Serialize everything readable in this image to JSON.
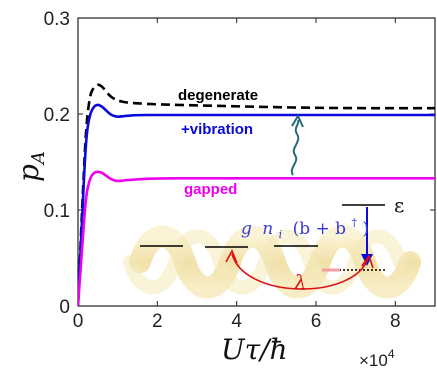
{
  "chart_data": {
    "type": "line",
    "xlabel": "Uτ/ħ",
    "ylabel": "p",
    "ylabel_sub": "A",
    "x_multiplier_base": "×10",
    "x_multiplier_exp": "4",
    "xlim": [
      0,
      9
    ],
    "ylim": [
      0,
      0.3
    ],
    "xticks": [
      0,
      2,
      4,
      6,
      8
    ],
    "yticks": [
      0,
      0.1,
      0.2,
      0.3
    ],
    "xtick_labels": [
      "0",
      "2",
      "4",
      "6",
      "8"
    ],
    "ytick_labels": [
      "0",
      "0.1",
      "0.2",
      "0.3"
    ],
    "series": [
      {
        "name": "degenerate",
        "color": "#000000",
        "dash": true,
        "label_color": "#000000",
        "x": [
          0,
          0.1,
          0.2,
          0.3,
          0.4,
          0.5,
          0.6,
          0.7,
          0.8,
          0.9,
          1.0,
          1.2,
          1.5,
          2.0,
          3.0,
          5.0,
          7.0,
          9.0
        ],
        "y": [
          0,
          0.1,
          0.185,
          0.22,
          0.228,
          0.231,
          0.229,
          0.224,
          0.219,
          0.216,
          0.214,
          0.212,
          0.211,
          0.21,
          0.209,
          0.207,
          0.206,
          0.206
        ]
      },
      {
        "name": "+vibration",
        "color": "#0a0adc",
        "dash": false,
        "label_color": "#0a0adc",
        "x": [
          0,
          0.1,
          0.2,
          0.3,
          0.4,
          0.5,
          0.6,
          0.7,
          0.8,
          0.9,
          1.0,
          1.2,
          1.5,
          2.0,
          3.0,
          5.0,
          9.0
        ],
        "y": [
          0,
          0.09,
          0.175,
          0.2,
          0.208,
          0.21,
          0.208,
          0.204,
          0.2,
          0.198,
          0.197,
          0.198,
          0.199,
          0.199,
          0.199,
          0.199,
          0.199
        ]
      },
      {
        "name": "gapped",
        "color": "#ee00ee",
        "dash": false,
        "label_color": "#ee00ee",
        "x": [
          0,
          0.1,
          0.2,
          0.3,
          0.4,
          0.5,
          0.6,
          0.7,
          0.8,
          0.9,
          1.0,
          1.2,
          1.5,
          2.0,
          3.0,
          5.0,
          9.0
        ],
        "y": [
          0,
          0.06,
          0.115,
          0.133,
          0.139,
          0.14,
          0.139,
          0.136,
          0.133,
          0.131,
          0.13,
          0.131,
          0.132,
          0.133,
          0.133,
          0.133,
          0.133
        ]
      }
    ],
    "inset": {
      "epsilon": "ε",
      "coupling_g": "g",
      "coupling_n": "n",
      "coupling_i": "i",
      "coupling_rest": "(b + b",
      "dagger": "†",
      "close": ")",
      "lambda": "λ",
      "coupling_color": "#3a3ad8",
      "lambda_color": "#dd1111",
      "arrow_color": "#0a0adc",
      "wavy_color": "#2a6a7a",
      "rope_color": "#f2e2a6"
    }
  }
}
